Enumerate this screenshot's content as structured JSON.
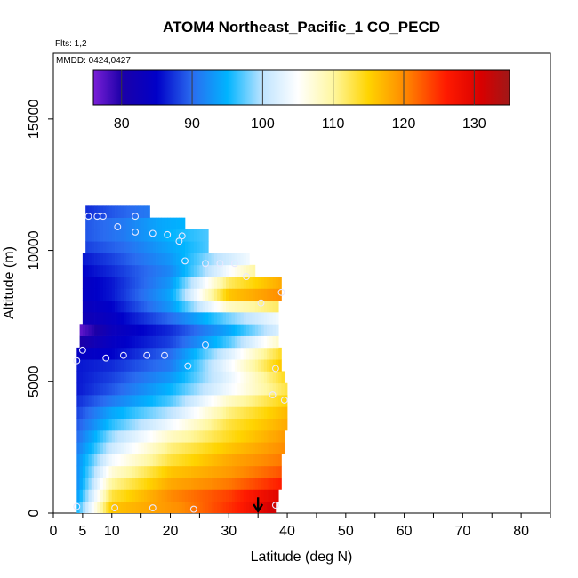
{
  "chart_data": {
    "type": "heatmap",
    "title": "ATOM4 Northeast_Pacific_1 CO_PECD",
    "flights_label": "Flts: 1,2",
    "dates_label": "MMDD: 0424,0427",
    "xlabel": "Latitude (deg N)",
    "ylabel": "Altitude (m)",
    "xlim": [
      0,
      85
    ],
    "ylim": [
      0,
      17500
    ],
    "x_ticks": [
      0,
      5,
      10,
      20,
      30,
      40,
      50,
      60,
      70,
      80
    ],
    "x_minor_ticks": [
      15,
      25,
      35,
      45,
      55,
      65,
      75,
      85
    ],
    "y_ticks": [
      0,
      5000,
      10000,
      15000
    ],
    "colorbar": {
      "min": 76,
      "max": 135,
      "ticks": [
        80,
        90,
        100,
        110,
        120,
        130
      ],
      "stops": [
        {
          "v": 76,
          "c": "#7b1fd8"
        },
        {
          "v": 80,
          "c": "#1c00a8"
        },
        {
          "v": 85,
          "c": "#0000c8"
        },
        {
          "v": 90,
          "c": "#2a6cf0"
        },
        {
          "v": 95,
          "c": "#00b4ff"
        },
        {
          "v": 100,
          "c": "#bfe4ff"
        },
        {
          "v": 105,
          "c": "#ffffff"
        },
        {
          "v": 110,
          "c": "#fff7a0"
        },
        {
          "v": 115,
          "c": "#ffd400"
        },
        {
          "v": 120,
          "c": "#ff8c00"
        },
        {
          "v": 126,
          "c": "#ff1a00"
        },
        {
          "v": 131,
          "c": "#d80000"
        },
        {
          "v": 135,
          "c": "#a01818"
        }
      ]
    },
    "field": {
      "altitude_bins_m": [
        0,
        450,
        900,
        1350,
        1800,
        2250,
        2700,
        3150,
        3600,
        4050,
        4500,
        4950,
        5400,
        5850,
        6300,
        6750,
        7200,
        7650,
        8100,
        8550,
        9000,
        9450,
        9900,
        10350,
        10800,
        11250
      ],
      "lat_extent": [
        [
          4,
          38
        ],
        [
          4,
          38.5
        ],
        [
          4,
          39
        ],
        [
          4,
          39
        ],
        [
          4,
          39
        ],
        [
          4,
          39.5
        ],
        [
          4,
          39.5
        ],
        [
          4,
          40
        ],
        [
          4,
          40
        ],
        [
          4,
          40
        ],
        [
          4,
          40
        ],
        [
          4,
          39.5
        ],
        [
          4,
          39
        ],
        [
          4,
          39
        ],
        [
          4.5,
          38.5
        ],
        [
          4.5,
          38.5
        ],
        [
          5,
          38.5
        ],
        [
          5,
          38.5
        ],
        [
          5,
          39
        ],
        [
          5,
          39
        ],
        [
          5,
          34.5
        ],
        [
          5,
          33.5
        ],
        [
          5.5,
          26.5
        ],
        [
          5.5,
          26.5
        ],
        [
          5.5,
          22.5
        ],
        [
          5.5,
          16.5
        ]
      ],
      "profiles": [
        [
          [
            4,
            95
          ],
          [
            10,
            116
          ],
          [
            22,
            120
          ],
          [
            32,
            126
          ],
          [
            38,
            132
          ]
        ],
        [
          [
            4,
            93
          ],
          [
            10,
            113
          ],
          [
            20,
            120
          ],
          [
            30,
            124
          ],
          [
            38.5,
            130
          ]
        ],
        [
          [
            4,
            92
          ],
          [
            10,
            110
          ],
          [
            20,
            118
          ],
          [
            30,
            121
          ],
          [
            39,
            126
          ]
        ],
        [
          [
            4,
            92
          ],
          [
            10,
            107
          ],
          [
            20,
            116
          ],
          [
            30,
            119
          ],
          [
            39,
            123
          ]
        ],
        [
          [
            4,
            92
          ],
          [
            10,
            104
          ],
          [
            20,
            113
          ],
          [
            30,
            118
          ],
          [
            39,
            121
          ]
        ],
        [
          [
            4,
            91
          ],
          [
            10,
            101
          ],
          [
            20,
            111
          ],
          [
            30,
            116
          ],
          [
            39.5,
            120
          ]
        ],
        [
          [
            4,
            90
          ],
          [
            10,
            99
          ],
          [
            20,
            108
          ],
          [
            30,
            114
          ],
          [
            39.5,
            119
          ]
        ],
        [
          [
            4,
            89
          ],
          [
            10,
            96
          ],
          [
            20,
            104
          ],
          [
            30,
            113
          ],
          [
            40,
            118
          ]
        ],
        [
          [
            4,
            88
          ],
          [
            10,
            94
          ],
          [
            20,
            100
          ],
          [
            30,
            111
          ],
          [
            40,
            117
          ]
        ],
        [
          [
            4,
            87
          ],
          [
            10,
            91
          ],
          [
            20,
            97
          ],
          [
            30,
            108
          ],
          [
            40,
            115
          ]
        ],
        [
          [
            4,
            86
          ],
          [
            10,
            89
          ],
          [
            20,
            95
          ],
          [
            30,
            104
          ],
          [
            40,
            113
          ]
        ],
        [
          [
            4,
            86
          ],
          [
            10,
            88
          ],
          [
            20,
            93
          ],
          [
            30,
            103
          ],
          [
            39.5,
            114
          ]
        ],
        [
          [
            4,
            86
          ],
          [
            10,
            87
          ],
          [
            20,
            91
          ],
          [
            30,
            104
          ],
          [
            39,
            116
          ]
        ],
        [
          [
            4,
            84
          ],
          [
            10,
            85
          ],
          [
            20,
            90
          ],
          [
            30,
            102
          ],
          [
            39,
            114
          ]
        ],
        [
          [
            4.5,
            80
          ],
          [
            10,
            84
          ],
          [
            20,
            88
          ],
          [
            30,
            97
          ],
          [
            38.5,
            108
          ]
        ],
        [
          [
            4.5,
            77
          ],
          [
            10,
            83
          ],
          [
            20,
            87
          ],
          [
            30,
            94
          ],
          [
            38.5,
            102
          ]
        ],
        [
          [
            5,
            82
          ],
          [
            10,
            84
          ],
          [
            20,
            90
          ],
          [
            30,
            98
          ],
          [
            38.5,
            104
          ]
        ],
        [
          [
            5,
            83
          ],
          [
            10,
            85
          ],
          [
            20,
            93
          ],
          [
            30,
            108
          ],
          [
            38.5,
            112
          ]
        ],
        [
          [
            5,
            84
          ],
          [
            10,
            86
          ],
          [
            20,
            94
          ],
          [
            30,
            116
          ],
          [
            39,
            120
          ]
        ],
        [
          [
            5,
            84
          ],
          [
            10,
            86
          ],
          [
            20,
            93
          ],
          [
            30,
            112
          ],
          [
            39,
            118
          ]
        ],
        [
          [
            5,
            85
          ],
          [
            10,
            87
          ],
          [
            20,
            92
          ],
          [
            28,
            102
          ],
          [
            34.5,
            110
          ]
        ],
        [
          [
            5,
            86
          ],
          [
            10,
            88
          ],
          [
            20,
            93
          ],
          [
            28,
            100
          ],
          [
            33.5,
            104
          ]
        ],
        [
          [
            5.5,
            88
          ],
          [
            12,
            90
          ],
          [
            20,
            94
          ],
          [
            26.5,
            97
          ]
        ],
        [
          [
            5.5,
            89
          ],
          [
            12,
            91
          ],
          [
            20,
            95
          ],
          [
            26.5,
            97
          ]
        ],
        [
          [
            5.5,
            89
          ],
          [
            12,
            91
          ],
          [
            18,
            94
          ],
          [
            22.5,
            95
          ]
        ],
        [
          [
            5.5,
            87
          ],
          [
            10,
            89
          ],
          [
            16.5,
            91
          ]
        ]
      ]
    },
    "observations": [
      {
        "lat": 4,
        "alt": 250
      },
      {
        "lat": 10.5,
        "alt": 200
      },
      {
        "lat": 17,
        "alt": 200
      },
      {
        "lat": 24,
        "alt": 150
      },
      {
        "lat": 38,
        "alt": 300
      },
      {
        "lat": 4,
        "alt": 5800
      },
      {
        "lat": 5,
        "alt": 6200
      },
      {
        "lat": 9,
        "alt": 5900
      },
      {
        "lat": 12,
        "alt": 6000
      },
      {
        "lat": 16,
        "alt": 6000
      },
      {
        "lat": 19,
        "alt": 6000
      },
      {
        "lat": 23,
        "alt": 5600
      },
      {
        "lat": 26,
        "alt": 6400
      },
      {
        "lat": 35.5,
        "alt": 8000
      },
      {
        "lat": 39,
        "alt": 8400
      },
      {
        "lat": 38,
        "alt": 5500
      },
      {
        "lat": 37.5,
        "alt": 4500
      },
      {
        "lat": 39.5,
        "alt": 4300
      },
      {
        "lat": 22.5,
        "alt": 9600
      },
      {
        "lat": 26,
        "alt": 9500
      },
      {
        "lat": 28.5,
        "alt": 9500
      },
      {
        "lat": 31,
        "alt": 9500
      },
      {
        "lat": 33,
        "alt": 9000
      },
      {
        "lat": 11,
        "alt": 10900
      },
      {
        "lat": 14,
        "alt": 10700
      },
      {
        "lat": 17,
        "alt": 10650
      },
      {
        "lat": 19.5,
        "alt": 10600
      },
      {
        "lat": 21.5,
        "alt": 10350
      },
      {
        "lat": 22,
        "alt": 10550
      },
      {
        "lat": 6,
        "alt": 11300
      },
      {
        "lat": 7.5,
        "alt": 11300
      },
      {
        "lat": 8.5,
        "alt": 11300
      },
      {
        "lat": 14,
        "alt": 11300
      }
    ],
    "marker": {
      "lat": 35,
      "alt_top": 600
    }
  }
}
